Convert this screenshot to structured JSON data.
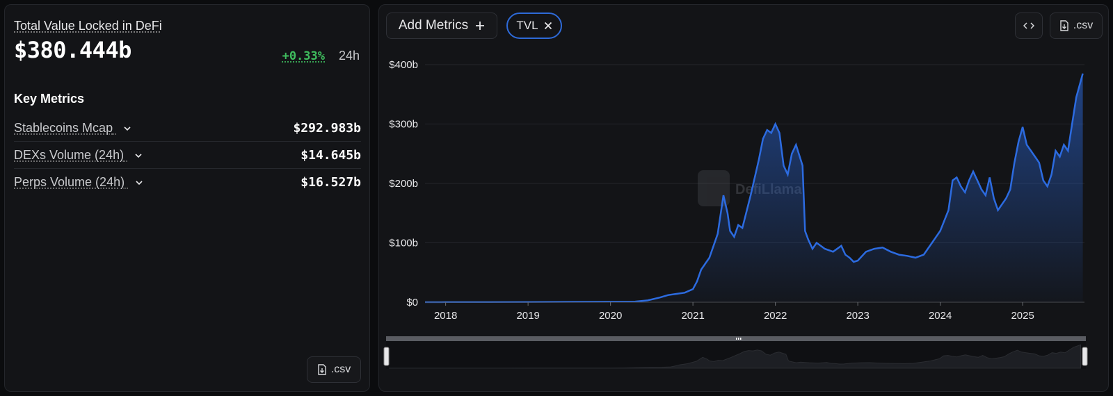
{
  "summary": {
    "title": "Total Value Locked in DeFi",
    "value": "$380.444b",
    "change": "+0.33%",
    "period": "24h"
  },
  "key_metrics": {
    "title": "Key Metrics",
    "items": [
      {
        "label": "Stablecoins Mcap",
        "value": "$292.983b"
      },
      {
        "label": "DEXs Volume (24h)",
        "value": "$14.645b"
      },
      {
        "label": "Perps Volume (24h)",
        "value": "$16.527b"
      }
    ]
  },
  "buttons": {
    "csv_label": ".csv",
    "add_metrics_label": "Add Metrics",
    "chip_label": "TVL"
  },
  "watermark": "DefiLlama",
  "colors": {
    "line": "#2c6be0",
    "positive": "#3fbd5e",
    "chip_border": "#2e6ad8"
  },
  "chart_data": {
    "type": "area",
    "title": "",
    "xlabel": "",
    "ylabel": "",
    "ylim": [
      0,
      400
    ],
    "xlim": [
      2017.75,
      2025.75
    ],
    "unit": "billions USD",
    "y_tick_labels": [
      "$0",
      "$100b",
      "$200b",
      "$300b",
      "$400b"
    ],
    "y_ticks": [
      0,
      100,
      200,
      300,
      400
    ],
    "x_ticks": [
      2018,
      2019,
      2020,
      2021,
      2022,
      2023,
      2024,
      2025
    ],
    "x_tick_labels": [
      "2018",
      "2019",
      "2020",
      "2021",
      "2022",
      "2023",
      "2024",
      "2025"
    ],
    "series": [
      {
        "x": [
          2017.75,
          2018.0,
          2018.5,
          2019.0,
          2019.5,
          2020.0,
          2020.3,
          2020.45,
          2020.6,
          2020.7,
          2020.8,
          2020.9,
          2021.0,
          2021.05,
          2021.1,
          2021.2,
          2021.3,
          2021.37,
          2021.42,
          2021.45,
          2021.5,
          2021.55,
          2021.6,
          2021.7,
          2021.75,
          2021.8,
          2021.85,
          2021.9,
          2021.95,
          2022.0,
          2022.05,
          2022.1,
          2022.15,
          2022.2,
          2022.25,
          2022.33,
          2022.36,
          2022.4,
          2022.45,
          2022.5,
          2022.55,
          2022.6,
          2022.7,
          2022.8,
          2022.85,
          2022.9,
          2022.95,
          2023.0,
          2023.1,
          2023.2,
          2023.3,
          2023.4,
          2023.5,
          2023.6,
          2023.7,
          2023.8,
          2023.85,
          2023.9,
          2023.95,
          2024.0,
          2024.1,
          2024.15,
          2024.2,
          2024.25,
          2024.3,
          2024.35,
          2024.4,
          2024.45,
          2024.5,
          2024.55,
          2024.6,
          2024.65,
          2024.7,
          2024.75,
          2024.8,
          2024.85,
          2024.9,
          2024.95,
          2025.0,
          2025.05,
          2025.1,
          2025.15,
          2025.2,
          2025.25,
          2025.3,
          2025.35,
          2025.4,
          2025.45,
          2025.5,
          2025.55,
          2025.6,
          2025.65,
          2025.7,
          2025.73
        ],
        "values": [
          0.1,
          0.2,
          0.3,
          0.5,
          0.7,
          0.8,
          1.0,
          3,
          8,
          12,
          14,
          16,
          22,
          35,
          55,
          75,
          115,
          180,
          150,
          120,
          110,
          130,
          125,
          180,
          210,
          240,
          275,
          290,
          285,
          300,
          285,
          230,
          215,
          250,
          265,
          230,
          120,
          105,
          90,
          100,
          95,
          90,
          85,
          95,
          80,
          75,
          68,
          70,
          85,
          90,
          92,
          85,
          80,
          78,
          75,
          80,
          90,
          100,
          110,
          120,
          155,
          205,
          210,
          195,
          185,
          205,
          220,
          205,
          190,
          180,
          210,
          175,
          155,
          165,
          175,
          190,
          235,
          270,
          295,
          265,
          255,
          245,
          235,
          205,
          195,
          215,
          255,
          245,
          265,
          255,
          300,
          345,
          370,
          385
        ]
      }
    ],
    "legend": "none",
    "grid": "horizontal"
  }
}
